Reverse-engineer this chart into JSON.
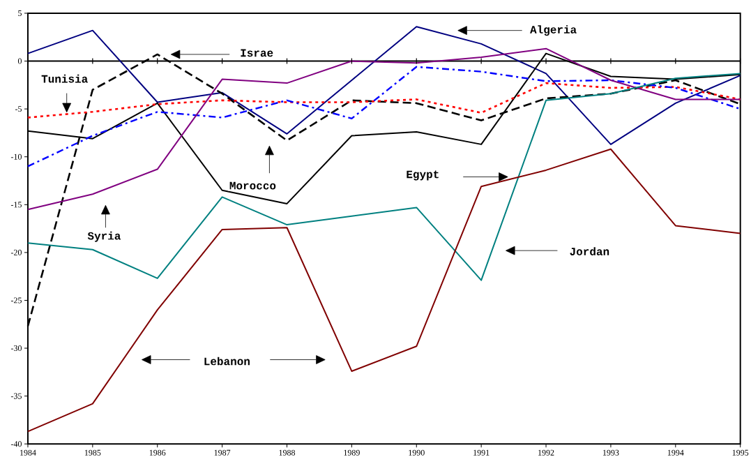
{
  "chart_data": {
    "type": "line",
    "x": [
      1984,
      1985,
      1986,
      1987,
      1988,
      1989,
      1990,
      1991,
      1992,
      1993,
      1994,
      1995
    ],
    "series": [
      {
        "color": "#000080",
        "line_style": "solid",
        "values": [
          0.8,
          3.2,
          -4.3,
          -3.3,
          -7.6,
          -2.0,
          3.6,
          1.8,
          -1.3,
          -8.7,
          -4.4,
          -1.5
        ]
      },
      {
        "color": "#000000",
        "line_style": "dashed",
        "values": [
          -27.7,
          -3.0,
          0.7,
          -3.4,
          -8.3,
          -4.1,
          -4.4,
          -6.2,
          -3.9,
          -3.4,
          -2.0,
          -4.5
        ]
      },
      {
        "color": "#000000",
        "line_style": "solid",
        "values": [
          -7.3,
          -8.1,
          -4.4,
          -13.5,
          -14.9,
          -7.8,
          -7.4,
          -8.7,
          0.8,
          -1.6,
          -1.9,
          -1.4
        ]
      },
      {
        "color": "#ff0000",
        "line_style": "dotted",
        "values": [
          -5.9,
          -5.3,
          -4.5,
          -4.1,
          -4.3,
          -4.3,
          -4.0,
          -5.4,
          -2.3,
          -2.8,
          -2.7,
          -4.0
        ]
      },
      {
        "color": "#0000ff",
        "line_style": "dashdot",
        "values": [
          -11.0,
          -7.8,
          -5.3,
          -5.9,
          -4.1,
          -6.0,
          -0.6,
          -1.1,
          -2.1,
          -2.0,
          -2.8,
          -5.0
        ]
      },
      {
        "color": "#800080",
        "line_style": "solid",
        "values": [
          -15.5,
          -13.9,
          -11.3,
          -1.9,
          -2.3,
          0.0,
          -0.2,
          0.4,
          1.3,
          -2.0,
          -4.0,
          -4.0
        ]
      },
      {
        "color": "#008080",
        "line_style": "solid",
        "values": [
          -19.0,
          -19.7,
          -22.7,
          -14.2,
          -17.1,
          -16.2,
          -15.3,
          -22.9,
          -4.1,
          -3.4,
          -1.8,
          -1.3
        ]
      },
      {
        "color": "#800000",
        "line_style": "solid",
        "values": [
          -38.7,
          -35.8,
          -26.0,
          -17.6,
          -17.4,
          -32.4,
          -29.8,
          -13.1,
          -11.4,
          -9.2,
          -17.2,
          -18.0
        ]
      }
    ],
    "xlim": [
      1984,
      1995
    ],
    "xticks": [
      1984,
      1985,
      1986,
      1987,
      1988,
      1989,
      1990,
      1991,
      1992,
      1993,
      1994,
      1995
    ],
    "ylim": [
      -40,
      5
    ],
    "yticks": [
      -40,
      -35,
      -30,
      -25,
      -20,
      -15,
      -10,
      -5,
      0,
      5
    ],
    "ref_lines": [
      {
        "axis": "y",
        "value": 0
      }
    ],
    "grid": false,
    "marker": "none",
    "annotations": [
      "Algeria",
      "Israe",
      "Tunisia",
      "Morocco",
      "Syria",
      "Egypt",
      "Jordan",
      "Lebanon"
    ]
  }
}
